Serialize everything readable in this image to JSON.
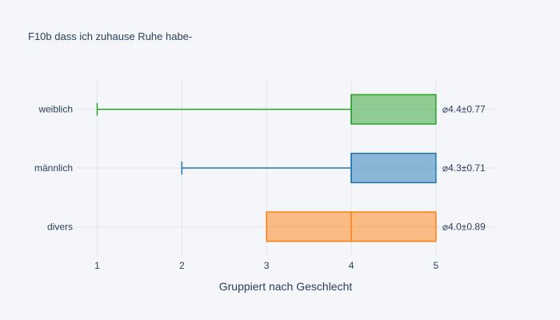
{
  "chart_data": {
    "type": "box",
    "orientation": "horizontal",
    "title": "F10b dass ich zuhause Ruhe habe-",
    "xlabel": "Gruppiert nach Geschlecht",
    "ylabel": "",
    "xlim": [
      0.75,
      5.7
    ],
    "xticks": [
      1,
      2,
      3,
      4,
      5
    ],
    "grid": true,
    "background": "#f5f6fa",
    "categories": [
      "weiblich",
      "männlich",
      "divers"
    ],
    "series": [
      {
        "category": "weiblich",
        "min": 1,
        "q1": 4,
        "median": 4,
        "q3": 5,
        "max": 5,
        "color": "#2ca02c",
        "annotation": "⌀4.4±0.77"
      },
      {
        "category": "männlich",
        "min": 2,
        "q1": 4,
        "median": 4,
        "q3": 5,
        "max": 5,
        "color": "#1f77b4",
        "annotation": "⌀4.3±0.71"
      },
      {
        "category": "divers",
        "min": 3,
        "q1": 3,
        "median": 4,
        "q3": 5,
        "max": 5,
        "color": "#ff7f0e",
        "annotation": "⌀4.0±0.89"
      }
    ]
  }
}
